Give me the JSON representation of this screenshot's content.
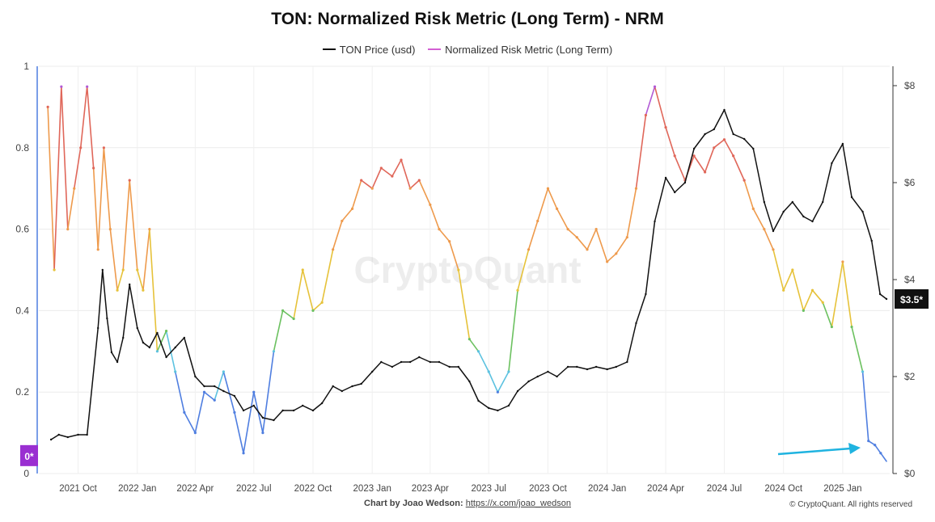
{
  "chart_data": {
    "type": "line",
    "title": "TON: Normalized Risk Metric (Long Term) - NRM",
    "watermark": "CryptoQuant",
    "legend": [
      {
        "name": "TON Price (usd)",
        "color": "#111111"
      },
      {
        "name": "Normalized Risk Metric (Long Term)",
        "color": "#d35fd3"
      }
    ],
    "legend_position": "top-center",
    "grid": true,
    "left_axis": {
      "ylim": [
        0,
        1
      ],
      "ticks": [
        "0",
        "0.2",
        "0.4",
        "0.6",
        "0.8",
        "1"
      ]
    },
    "right_axis": {
      "ylim": [
        0,
        8.4
      ],
      "ticks": [
        "$0",
        "$2",
        "$4",
        "$6",
        "$8"
      ]
    },
    "x_ticks": [
      "2021 Oct",
      "2022 Jan",
      "2022 Apr",
      "2022 Jul",
      "2022 Oct",
      "2023 Jan",
      "2023 Apr",
      "2023 Jul",
      "2023 Oct",
      "2024 Jan",
      "2024 Apr",
      "2024 Jul",
      "2024 Oct",
      "2025 Jan"
    ],
    "x_range": [
      "2021-08-01",
      "2025-03-15"
    ],
    "price_label": "$3.5*",
    "risk_label": "0*",
    "risk_bands": [
      {
        "max": 0.2,
        "color": "#4f7ee0"
      },
      {
        "max": 0.3,
        "color": "#5cc2e0"
      },
      {
        "max": 0.4,
        "color": "#6cc160"
      },
      {
        "max": 0.5,
        "color": "#e6c23a"
      },
      {
        "max": 0.7,
        "color": "#ee9a4c"
      },
      {
        "max": 0.9,
        "color": "#e0675a"
      },
      {
        "max": 1.0,
        "color": "#b25bd6"
      }
    ],
    "series": [
      {
        "name": "TON Price (usd)",
        "x": [
          "2021-08-20",
          "2021-09-01",
          "2021-09-15",
          "2021-10-01",
          "2021-10-15",
          "2021-11-01",
          "2021-11-08",
          "2021-11-15",
          "2021-11-22",
          "2021-12-01",
          "2021-12-10",
          "2021-12-20",
          "2022-01-01",
          "2022-01-10",
          "2022-01-20",
          "2022-02-01",
          "2022-02-15",
          "2022-03-01",
          "2022-03-15",
          "2022-04-01",
          "2022-04-15",
          "2022-05-01",
          "2022-05-15",
          "2022-06-01",
          "2022-06-15",
          "2022-07-01",
          "2022-07-15",
          "2022-08-01",
          "2022-08-15",
          "2022-09-01",
          "2022-09-15",
          "2022-10-01",
          "2022-10-15",
          "2022-11-01",
          "2022-11-15",
          "2022-12-01",
          "2022-12-15",
          "2023-01-01",
          "2023-01-15",
          "2023-02-01",
          "2023-02-15",
          "2023-03-01",
          "2023-03-15",
          "2023-04-01",
          "2023-04-15",
          "2023-05-01",
          "2023-05-15",
          "2023-06-01",
          "2023-06-15",
          "2023-07-01",
          "2023-07-15",
          "2023-08-01",
          "2023-08-15",
          "2023-09-01",
          "2023-09-15",
          "2023-10-01",
          "2023-10-15",
          "2023-11-01",
          "2023-11-15",
          "2023-12-01",
          "2023-12-15",
          "2024-01-01",
          "2024-01-15",
          "2024-02-01",
          "2024-02-15",
          "2024-03-01",
          "2024-03-15",
          "2024-04-01",
          "2024-04-15",
          "2024-05-01",
          "2024-05-15",
          "2024-06-01",
          "2024-06-15",
          "2024-07-01",
          "2024-07-15",
          "2024-08-01",
          "2024-08-15",
          "2024-09-01",
          "2024-09-15",
          "2024-10-01",
          "2024-10-15",
          "2024-11-01",
          "2024-11-15",
          "2024-12-01",
          "2024-12-15",
          "2025-01-01",
          "2025-01-15",
          "2025-02-01",
          "2025-02-15",
          "2025-02-28",
          "2025-03-10"
        ],
        "y": [
          0.7,
          0.8,
          0.75,
          0.8,
          0.8,
          3.0,
          4.2,
          3.2,
          2.5,
          2.3,
          2.8,
          3.9,
          3.0,
          2.7,
          2.6,
          2.9,
          2.4,
          2.6,
          2.8,
          2.0,
          1.8,
          1.8,
          1.7,
          1.6,
          1.3,
          1.4,
          1.15,
          1.1,
          1.3,
          1.3,
          1.4,
          1.3,
          1.45,
          1.8,
          1.7,
          1.8,
          1.85,
          2.1,
          2.3,
          2.2,
          2.3,
          2.3,
          2.4,
          2.3,
          2.3,
          2.2,
          2.2,
          1.9,
          1.5,
          1.35,
          1.3,
          1.4,
          1.7,
          1.9,
          2.0,
          2.1,
          2.0,
          2.2,
          2.2,
          2.15,
          2.2,
          2.15,
          2.2,
          2.3,
          3.1,
          3.7,
          5.2,
          6.1,
          5.8,
          6.0,
          6.7,
          7.0,
          7.1,
          7.5,
          7.0,
          6.9,
          6.7,
          5.6,
          5.0,
          5.4,
          5.6,
          5.3,
          5.2,
          5.6,
          6.4,
          6.8,
          5.7,
          5.4,
          4.8,
          3.7,
          3.6
        ]
      },
      {
        "name": "Normalized Risk Metric (Long Term)",
        "x": [
          "2021-08-15",
          "2021-08-25",
          "2021-09-05",
          "2021-09-15",
          "2021-09-25",
          "2021-10-05",
          "2021-10-15",
          "2021-10-25",
          "2021-11-01",
          "2021-11-10",
          "2021-11-20",
          "2021-12-01",
          "2021-12-10",
          "2021-12-20",
          "2022-01-01",
          "2022-01-10",
          "2022-01-20",
          "2022-02-01",
          "2022-02-15",
          "2022-03-01",
          "2022-03-15",
          "2022-04-01",
          "2022-04-15",
          "2022-05-01",
          "2022-05-15",
          "2022-06-01",
          "2022-06-15",
          "2022-07-01",
          "2022-07-15",
          "2022-08-01",
          "2022-08-15",
          "2022-09-01",
          "2022-09-15",
          "2022-10-01",
          "2022-10-15",
          "2022-11-01",
          "2022-11-15",
          "2022-12-01",
          "2022-12-15",
          "2023-01-01",
          "2023-01-15",
          "2023-02-01",
          "2023-02-15",
          "2023-03-01",
          "2023-03-15",
          "2023-04-01",
          "2023-04-15",
          "2023-05-01",
          "2023-05-15",
          "2023-06-01",
          "2023-06-15",
          "2023-07-01",
          "2023-07-15",
          "2023-08-01",
          "2023-08-15",
          "2023-09-01",
          "2023-09-15",
          "2023-10-01",
          "2023-10-15",
          "2023-11-01",
          "2023-11-15",
          "2023-12-01",
          "2023-12-15",
          "2024-01-01",
          "2024-01-15",
          "2024-02-01",
          "2024-02-15",
          "2024-03-01",
          "2024-03-15",
          "2024-04-01",
          "2024-04-15",
          "2024-05-01",
          "2024-05-15",
          "2024-06-01",
          "2024-06-15",
          "2024-07-01",
          "2024-07-15",
          "2024-08-01",
          "2024-08-15",
          "2024-09-01",
          "2024-09-15",
          "2024-10-01",
          "2024-10-15",
          "2024-11-01",
          "2024-11-15",
          "2024-12-01",
          "2024-12-15",
          "2025-01-01",
          "2025-01-15",
          "2025-02-01",
          "2025-02-10",
          "2025-02-20",
          "2025-03-01",
          "2025-03-10"
        ],
        "y": [
          0.9,
          0.5,
          0.95,
          0.6,
          0.7,
          0.8,
          0.95,
          0.75,
          0.55,
          0.8,
          0.6,
          0.45,
          0.5,
          0.72,
          0.5,
          0.45,
          0.6,
          0.3,
          0.35,
          0.25,
          0.15,
          0.1,
          0.2,
          0.18,
          0.25,
          0.15,
          0.05,
          0.2,
          0.1,
          0.3,
          0.4,
          0.38,
          0.5,
          0.4,
          0.42,
          0.55,
          0.62,
          0.65,
          0.72,
          0.7,
          0.75,
          0.73,
          0.77,
          0.7,
          0.72,
          0.66,
          0.6,
          0.57,
          0.5,
          0.33,
          0.3,
          0.25,
          0.2,
          0.25,
          0.45,
          0.55,
          0.62,
          0.7,
          0.65,
          0.6,
          0.58,
          0.55,
          0.6,
          0.52,
          0.54,
          0.58,
          0.7,
          0.88,
          0.95,
          0.85,
          0.78,
          0.72,
          0.78,
          0.74,
          0.8,
          0.82,
          0.78,
          0.72,
          0.65,
          0.6,
          0.55,
          0.45,
          0.5,
          0.4,
          0.45,
          0.42,
          0.36,
          0.52,
          0.36,
          0.25,
          0.08,
          0.07,
          0.05,
          0.03
        ]
      }
    ]
  },
  "footer": {
    "credit_prefix": "Chart by Joao Wedson:",
    "credit_link": "https://x.com/joao_wedson",
    "copyright": "© CryptoQuant. All rights reserved"
  }
}
